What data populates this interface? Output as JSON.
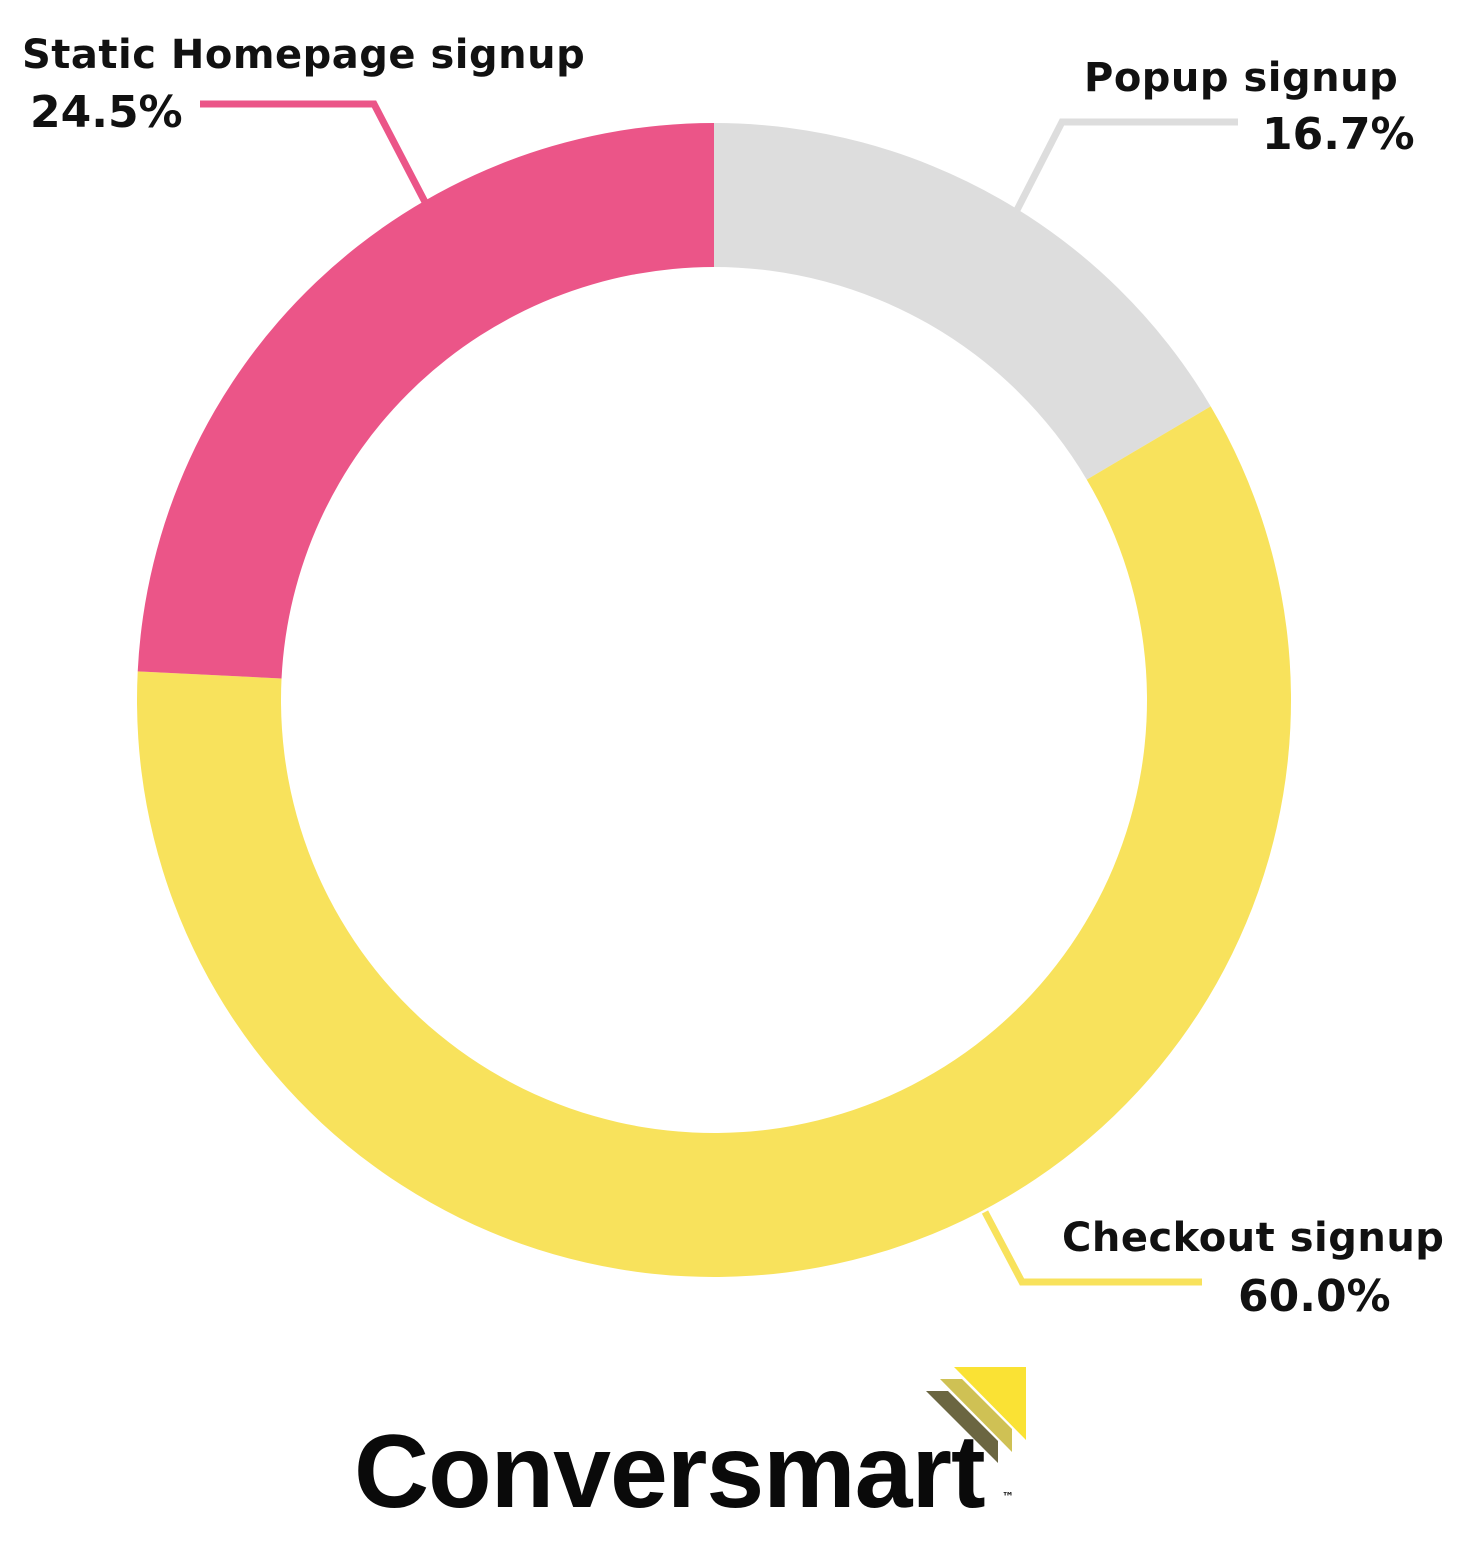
{
  "chart_data": {
    "type": "pie",
    "donut": true,
    "start_angle": "top, clockwise",
    "slices": [
      {
        "label": "Popup signup",
        "value": 16.7,
        "display": "16.7%",
        "color": "#dddddd"
      },
      {
        "label": "Checkout signup",
        "value": 60.0,
        "display": "60.0%",
        "color": "#f8e25c"
      },
      {
        "label": "Static Homepage signup",
        "value": 24.5,
        "display": "24.5%",
        "color": "#eb5588"
      }
    ]
  },
  "branding": {
    "logo_text": "Conversmart",
    "trademark": "™",
    "logo_colors": [
      "#fae234",
      "#cfc154",
      "#6b6641"
    ]
  }
}
